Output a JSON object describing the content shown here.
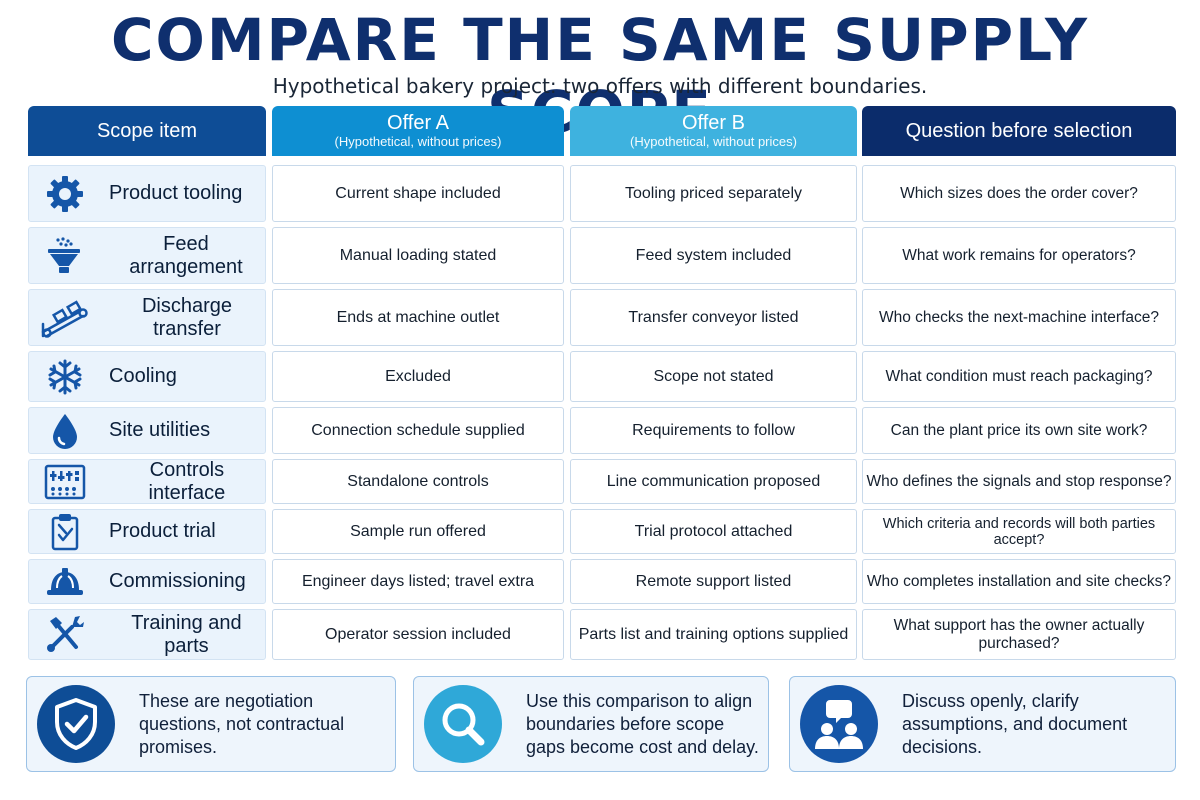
{
  "title": "COMPARE THE SAME SUPPLY SCOPE",
  "subtitle": "Hypothetical bakery project: two offers with different boundaries.",
  "headers": {
    "scope": "Scope item",
    "offer_a": "Offer A",
    "offer_a_sub": "(Hypothetical, without prices)",
    "offer_b": "Offer B",
    "offer_b_sub": "(Hypothetical, without prices)",
    "question": "Question before selection"
  },
  "rows": [
    {
      "icon": "gear-icon",
      "item": "Product tooling",
      "offer_a": "Current shape included",
      "offer_b": "Tooling priced separately",
      "question": "Which sizes does the order cover?"
    },
    {
      "icon": "hopper-icon",
      "item": "Feed arrangement",
      "offer_a": "Manual loading stated",
      "offer_b": "Feed system included",
      "question": "What work remains for operators?"
    },
    {
      "icon": "conveyor-icon",
      "item": "Discharge transfer",
      "offer_a": "Ends at machine outlet",
      "offer_b": "Transfer conveyor listed",
      "question": "Who checks the next-machine interface?"
    },
    {
      "icon": "snowflake-icon",
      "item": "Cooling",
      "offer_a": "Excluded",
      "offer_b": "Scope not stated",
      "question": "What condition must reach packaging?"
    },
    {
      "icon": "water-drop-icon",
      "item": "Site utilities",
      "offer_a": "Connection schedule supplied",
      "offer_b": "Requirements to follow",
      "question": "Can the plant price its own site work?"
    },
    {
      "icon": "control-panel-icon",
      "item": "Controls interface",
      "offer_a": "Standalone controls",
      "offer_b": "Line communication proposed",
      "question": "Who defines the signals and stop response?"
    },
    {
      "icon": "clipboard-check-icon",
      "item": "Product trial",
      "offer_a": "Sample run offered",
      "offer_b": "Trial protocol attached",
      "question": "Which criteria and records will both parties accept?"
    },
    {
      "icon": "hard-hat-icon",
      "item": "Commissioning",
      "offer_a": "Engineer days listed; travel extra",
      "offer_b": "Remote support listed",
      "question": "Who completes installation and site checks?"
    },
    {
      "icon": "tools-icon",
      "item": "Training and parts",
      "offer_a": "Operator session included",
      "offer_b": "Parts list and training options supplied",
      "question": "What support has the owner actually purchased?"
    }
  ],
  "notes": [
    {
      "icon": "shield-check-icon",
      "text": "These are negotiation questions, not contractual promises."
    },
    {
      "icon": "magnifier-icon",
      "text": "Use this comparison to align boundaries before scope gaps become cost and delay."
    },
    {
      "icon": "discussion-icon",
      "text": "Discuss openly, clarify assumptions, and document decisions."
    }
  ],
  "colors": {
    "title": "#0f2f6e",
    "header_scope": "#0e4d96",
    "header_offer_a": "#0e8fd2",
    "header_offer_b": "#3eb2df",
    "header_question": "#0b2c6b",
    "icon": "#1556a8"
  }
}
